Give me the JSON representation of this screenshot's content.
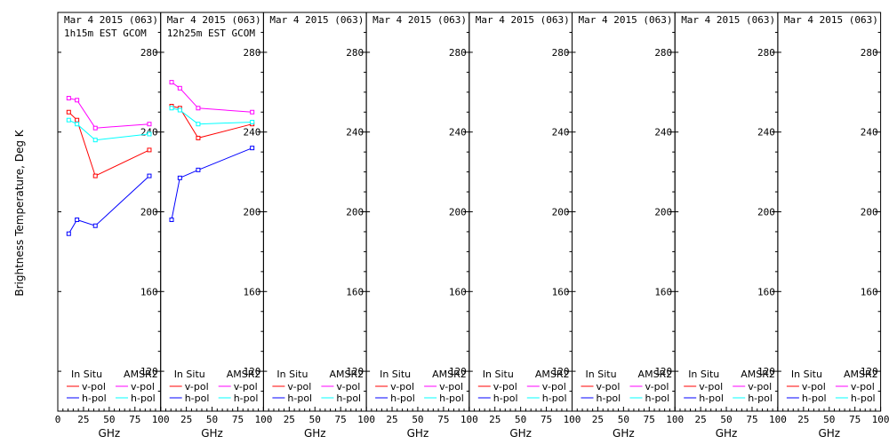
{
  "chart_data": {
    "type": "line",
    "ylabel": "Brightness Temperature, Deg K",
    "xlabel": "GHz",
    "xlim": [
      0,
      100
    ],
    "ylim": [
      100,
      300
    ],
    "xticks": [
      0,
      25,
      50,
      75,
      100
    ],
    "xtick_labels": [
      "0",
      "25",
      "50",
      "75",
      "100"
    ],
    "yticks": [
      120,
      160,
      200,
      240,
      280
    ],
    "legend": {
      "placement": "bottom",
      "in_situ": "In Situ",
      "amsr2": "AMSR2",
      "v_pol": "v-pol",
      "h_pol": "h-pol"
    },
    "colors": {
      "in_situ_v": "#ff0000",
      "in_situ_h": "#0000ff",
      "amsr2_v": "#ff00ff",
      "amsr2_h": "#00ffff"
    },
    "panels": [
      {
        "title": "Mar 4 2015 (063)",
        "subtitle": "1h15m EST GCOM",
        "series": [
          {
            "key": "in_situ_v",
            "x": [
              10.65,
              18.7,
              36.5,
              89.0
            ],
            "y": [
              250,
              246,
              218,
              231
            ]
          },
          {
            "key": "in_situ_h",
            "x": [
              10.65,
              18.7,
              36.5,
              89.0
            ],
            "y": [
              189,
              196,
              193,
              218
            ]
          },
          {
            "key": "amsr2_v",
            "x": [
              10.65,
              18.7,
              36.5,
              89.0
            ],
            "y": [
              257,
              256,
              242,
              244
            ]
          },
          {
            "key": "amsr2_h",
            "x": [
              10.65,
              18.7,
              36.5,
              89.0
            ],
            "y": [
              246,
              244,
              236,
              239
            ]
          }
        ]
      },
      {
        "title": "Mar 4 2015 (063)",
        "subtitle": "12h25m EST GCOM",
        "series": [
          {
            "key": "in_situ_v",
            "x": [
              10.65,
              18.7,
              36.5,
              89.0
            ],
            "y": [
              253,
              252,
              237,
              244
            ]
          },
          {
            "key": "in_situ_h",
            "x": [
              10.65,
              18.7,
              36.5,
              89.0
            ],
            "y": [
              196,
              217,
              221,
              232
            ]
          },
          {
            "key": "amsr2_v",
            "x": [
              10.65,
              18.7,
              36.5,
              89.0
            ],
            "y": [
              265,
              262,
              252,
              250
            ]
          },
          {
            "key": "amsr2_h",
            "x": [
              10.65,
              18.7,
              36.5,
              89.0
            ],
            "y": [
              252,
              251,
              244,
              245
            ]
          }
        ]
      },
      {
        "title": "Mar 4 2015 (063)",
        "subtitle": "",
        "series": []
      },
      {
        "title": "Mar 4 2015 (063)",
        "subtitle": "",
        "series": []
      },
      {
        "title": "Mar 4 2015 (063)",
        "subtitle": "",
        "series": []
      },
      {
        "title": "Mar 4 2015 (063)",
        "subtitle": "",
        "series": []
      },
      {
        "title": "Mar 4 2015 (063)",
        "subtitle": "",
        "series": []
      },
      {
        "title": "Mar 4 2015 (063)",
        "subtitle": "",
        "series": []
      }
    ]
  }
}
